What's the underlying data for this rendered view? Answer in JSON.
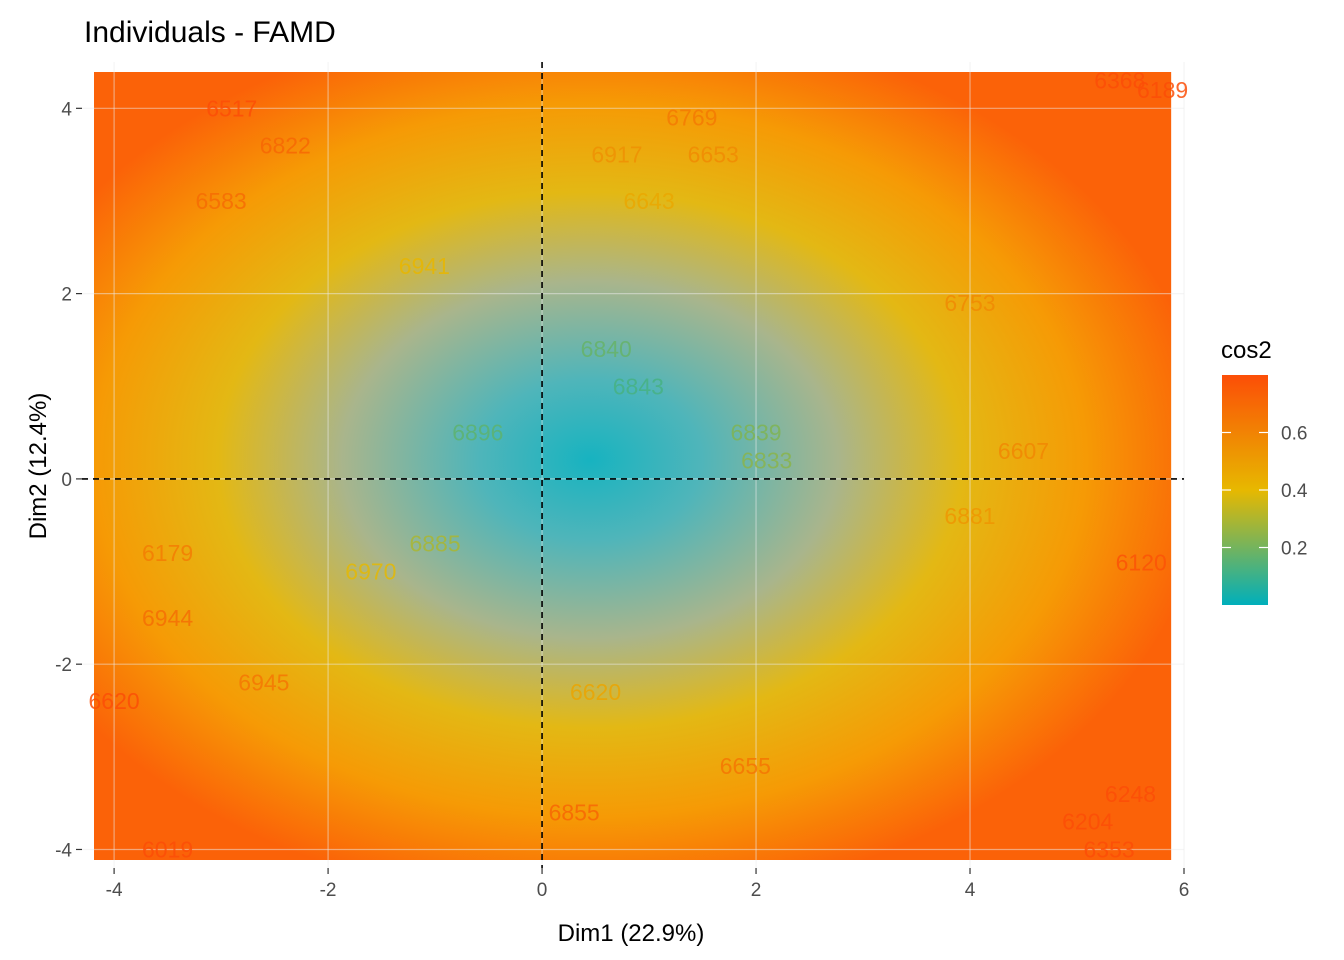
{
  "chart_data": {
    "type": "scatter",
    "title": "Individuals - FAMD",
    "xlabel": "Dim1 (22.9%)",
    "ylabel": "Dim2 (12.4%)",
    "xlim": [
      -4.3,
      6.0
    ],
    "ylim": [
      -4.2,
      4.5
    ],
    "x_ticks": [
      -4,
      -2,
      0,
      2,
      4,
      6
    ],
    "y_ticks": [
      -4,
      -2,
      0,
      2,
      4
    ],
    "x_tick_labels": [
      "-4",
      "-2",
      "0",
      "2",
      "4",
      "6"
    ],
    "y_tick_labels": [
      "-4",
      "-2",
      "0",
      "2",
      "4"
    ],
    "grid": true,
    "reference_lines": {
      "x": 0,
      "y": 0,
      "style": "dashed"
    },
    "color_variable": "cos2",
    "color_scale": {
      "min": 0.0,
      "max": 0.8,
      "colors": [
        "#00AFBB",
        "#E7B800",
        "#FC4E07"
      ],
      "ticks": [
        0.2,
        0.4,
        0.6
      ],
      "tick_labels": [
        "0.2",
        "0.4",
        "0.6"
      ]
    },
    "legend": {
      "title": "cos2",
      "position": "right"
    },
    "points": [
      {
        "label": "6769",
        "x": 1.4,
        "y": 3.9
      },
      {
        "label": "6917",
        "x": 0.7,
        "y": 3.5
      },
      {
        "label": "6653",
        "x": 1.6,
        "y": 3.5
      },
      {
        "label": "6643",
        "x": 1.0,
        "y": 3.0
      },
      {
        "label": "6517",
        "x": -2.9,
        "y": 4.0
      },
      {
        "label": "6822",
        "x": -2.4,
        "y": 3.6
      },
      {
        "label": "6941",
        "x": -1.1,
        "y": 2.3
      },
      {
        "label": "6840",
        "x": 0.6,
        "y": 1.4
      },
      {
        "label": "6843",
        "x": 0.9,
        "y": 1.0
      },
      {
        "label": "6896",
        "x": -0.6,
        "y": 0.5
      },
      {
        "label": "6839",
        "x": 2.0,
        "y": 0.5
      },
      {
        "label": "6833",
        "x": 2.1,
        "y": 0.2
      },
      {
        "label": "6179",
        "x": -3.5,
        "y": -0.8
      },
      {
        "label": "6885",
        "x": -1.0,
        "y": -0.7
      },
      {
        "label": "6970",
        "x": -1.6,
        "y": -1.0
      },
      {
        "label": "6944",
        "x": -3.5,
        "y": -1.5
      },
      {
        "label": "6945",
        "x": -2.6,
        "y": -2.2
      },
      {
        "label": "6620",
        "x": 0.5,
        "y": -2.3
      },
      {
        "label": "6655",
        "x": 1.9,
        "y": -3.1
      },
      {
        "label": "6855",
        "x": 0.3,
        "y": -3.6
      },
      {
        "label": "6753",
        "x": 4.0,
        "y": 1.9
      },
      {
        "label": "6607",
        "x": 4.5,
        "y": 0.3
      },
      {
        "label": "6881",
        "x": 4.0,
        "y": -0.4
      },
      {
        "label": "6120",
        "x": 5.6,
        "y": -0.9
      },
      {
        "label": "6248",
        "x": 5.5,
        "y": -3.4
      },
      {
        "label": "6204",
        "x": 5.1,
        "y": -3.7
      },
      {
        "label": "6353",
        "x": 5.3,
        "y": -4.0
      },
      {
        "label": "6368",
        "x": 5.4,
        "y": 4.3
      },
      {
        "label": "6189",
        "x": 5.8,
        "y": 4.2
      },
      {
        "label": "6019",
        "x": -3.5,
        "y": -4.0
      },
      {
        "label": "6620",
        "x": -4.0,
        "y": -2.4
      },
      {
        "label": "6583",
        "x": -3.0,
        "y": 3.0
      }
    ]
  }
}
